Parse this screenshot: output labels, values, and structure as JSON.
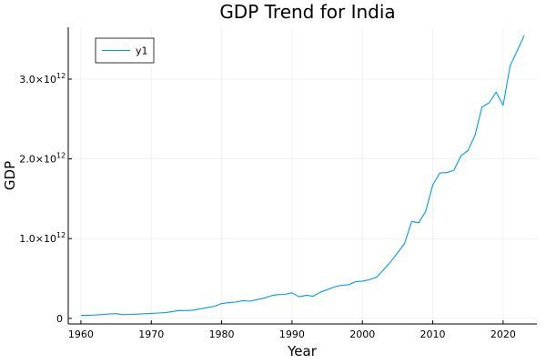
{
  "chart_data": {
    "type": "line",
    "title": "GDP Trend for India",
    "xlabel": "Year",
    "ylabel": "GDP",
    "xlim": [
      1958.2,
      2024.8
    ],
    "ylim": [
      -70000000000.0,
      3650000000000.0
    ],
    "grid": true,
    "legend_position": "top-left",
    "x_ticks": [
      {
        "value": 1960,
        "label": "1960"
      },
      {
        "value": 1970,
        "label": "1970"
      },
      {
        "value": 1980,
        "label": "1980"
      },
      {
        "value": 1990,
        "label": "1990"
      },
      {
        "value": 2000,
        "label": "2000"
      },
      {
        "value": 2010,
        "label": "2010"
      },
      {
        "value": 2020,
        "label": "2020"
      }
    ],
    "y_ticks": [
      {
        "value": 0,
        "mantissa": "0",
        "exp": ""
      },
      {
        "value": 1000000000000,
        "mantissa": "1.0×10",
        "exp": "12"
      },
      {
        "value": 2000000000000,
        "mantissa": "2.0×10",
        "exp": "12"
      },
      {
        "value": 3000000000000,
        "mantissa": "3.0×10",
        "exp": "12"
      }
    ],
    "series": [
      {
        "name": "y1",
        "color": "#009AFA",
        "x": [
          1960,
          1961,
          1962,
          1963,
          1964,
          1965,
          1966,
          1967,
          1968,
          1969,
          1970,
          1971,
          1972,
          1973,
          1974,
          1975,
          1976,
          1977,
          1978,
          1979,
          1980,
          1981,
          1982,
          1983,
          1984,
          1985,
          1986,
          1987,
          1988,
          1989,
          1990,
          1991,
          1992,
          1993,
          1994,
          1995,
          1996,
          1997,
          1998,
          1999,
          2000,
          2001,
          2002,
          2003,
          2004,
          2005,
          2006,
          2007,
          2008,
          2009,
          2010,
          2011,
          2012,
          2013,
          2014,
          2015,
          2016,
          2017,
          2018,
          2019,
          2020,
          2021,
          2022,
          2023
        ],
        "y": [
          37000000000.0,
          39000000000.0,
          42000000000.0,
          48000000000.0,
          56000000000.0,
          59000000000.0,
          46000000000.0,
          50000000000.0,
          53000000000.0,
          58000000000.0,
          62000000000.0,
          67000000000.0,
          71000000000.0,
          85000000000.0,
          99000000000.0,
          98000000000.0,
          103000000000.0,
          121000000000.0,
          137000000000.0,
          153000000000.0,
          186000000000.0,
          196000000000.0,
          204000000000.0,
          222000000000.0,
          215000000000.0,
          235000000000.0,
          253000000000.0,
          283000000000.0,
          299000000000.0,
          301000000000.0,
          321000000000.0,
          270000000000.0,
          288000000000.0,
          279000000000.0,
          327000000000.0,
          360000000000.0,
          393000000000.0,
          415000000000.0,
          421000000000.0,
          459000000000.0,
          468000000000.0,
          485000000000.0,
          515000000000.0,
          608000000000.0,
          709000000000.0,
          820000000000.0,
          940000000000.0,
          1216000000000.0,
          1199000000000.0,
          1341000000000.0,
          1675000000000.0,
          1823000000000.0,
          1828000000000.0,
          1857000000000.0,
          2039000000000.0,
          2104000000000.0,
          2295000000000.0,
          2651000000000.0,
          2703000000000.0,
          2836000000000.0,
          2672000000000.0,
          3167000000000.0,
          3353000000000.0,
          3550000000000.0
        ]
      }
    ]
  }
}
